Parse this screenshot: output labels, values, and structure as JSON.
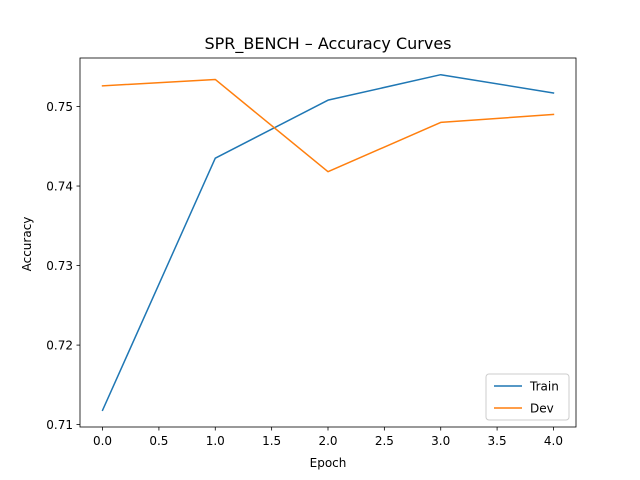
{
  "chart_data": {
    "type": "line",
    "title": "SPR_BENCH – Accuracy Curves",
    "xlabel": "Epoch",
    "ylabel": "Accuracy",
    "x": [
      0,
      1,
      2,
      3,
      4
    ],
    "series": [
      {
        "name": "Train",
        "color": "#1f77b4",
        "values": [
          0.7118,
          0.7435,
          0.7508,
          0.754,
          0.7517
        ]
      },
      {
        "name": "Dev",
        "color": "#ff7f0e",
        "values": [
          0.7526,
          0.7534,
          0.7418,
          0.748,
          0.749
        ]
      }
    ],
    "xlim": [
      -0.2,
      4.2
    ],
    "ylim": [
      0.7097,
      0.7561
    ],
    "xticks": [
      0.0,
      0.5,
      1.0,
      1.5,
      2.0,
      2.5,
      3.0,
      3.5,
      4.0
    ],
    "xtick_labels": [
      "0.0",
      "0.5",
      "1.0",
      "1.5",
      "2.0",
      "2.5",
      "3.0",
      "3.5",
      "4.0"
    ],
    "yticks": [
      0.71,
      0.72,
      0.73,
      0.74,
      0.75
    ],
    "ytick_labels": [
      "0.71",
      "0.72",
      "0.73",
      "0.74",
      "0.75"
    ],
    "grid": false,
    "legend_position": "bottom-right"
  }
}
